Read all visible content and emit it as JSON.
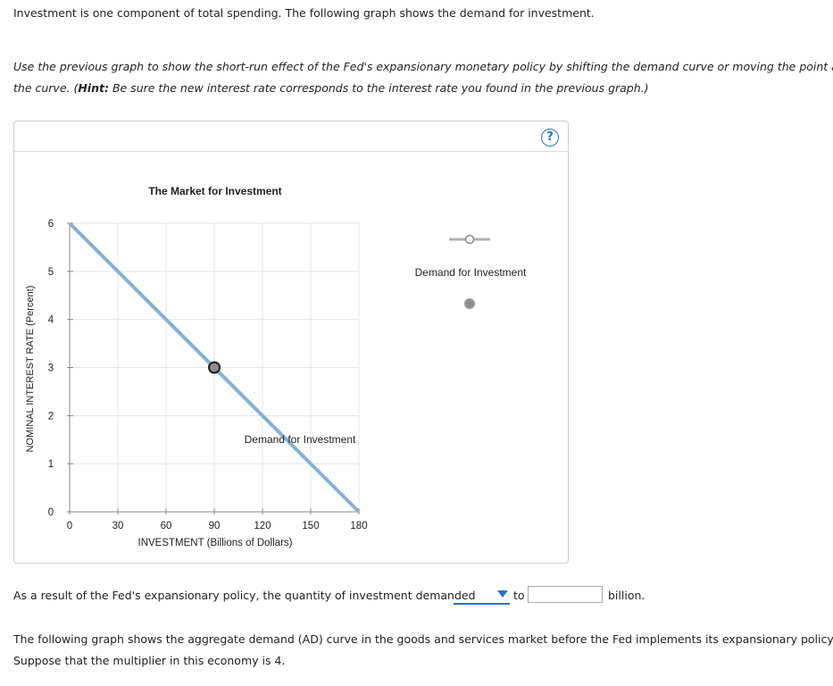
{
  "intro": "Investment is one component of total spending. The following graph shows the demand for investment.",
  "instruction": {
    "line1": "Use the previous graph to show the short-run effect of the Fed's expansionary monetary policy by shifting the demand curve or moving the point along",
    "line2_pre": "the curve. (",
    "hint_label": "Hint:",
    "line2_post": " Be sure the new interest rate corresponds to the interest rate you found in the previous graph.)"
  },
  "help_button": "?",
  "chart_data": {
    "type": "line",
    "title": "The Market for Investment",
    "xlabel": "INVESTMENT (Billions of Dollars)",
    "ylabel": "NOMINAL INTEREST RATE (Percent)",
    "xlim": [
      0,
      180
    ],
    "ylim": [
      0,
      6
    ],
    "x_ticks": [
      0,
      30,
      60,
      90,
      120,
      150,
      180
    ],
    "y_ticks": [
      0,
      1,
      2,
      3,
      4,
      5,
      6
    ],
    "grid": true,
    "series": [
      {
        "name": "Demand for Investment",
        "x": [
          0,
          180
        ],
        "y": [
          6,
          0
        ],
        "color": "#8aaed4"
      }
    ],
    "point": {
      "x": 90,
      "y": 3
    },
    "curve_label": "Demand for Investment",
    "legend": {
      "placement": "right",
      "line_label": "Demand for Investment"
    }
  },
  "question": {
    "pre": "As a result of the Fed's expansionary policy, the quantity of investment demanded",
    "dropdown_value": "",
    "to_label": "to",
    "input_value": "",
    "post": "billion."
  },
  "next_text": {
    "line1": "The following graph shows the aggregate demand (AD) curve in the goods and services market before the Fed implements its expansionary policy.",
    "line2": "Suppose that the multiplier in this economy is 4."
  }
}
